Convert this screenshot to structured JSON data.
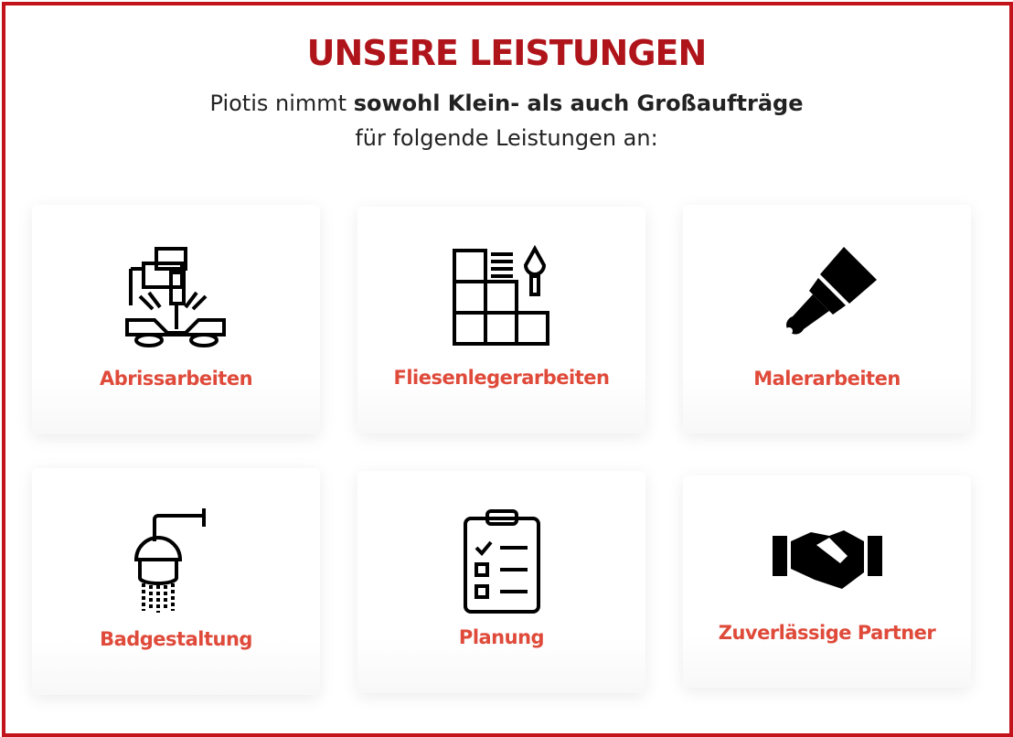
{
  "header": {
    "title": "UNSERE LEISTUNGEN",
    "subtitle_pre": "Piotis nimmt ",
    "subtitle_bold": "sowohl Klein- als auch Großaufträge",
    "subtitle_post": "für folgende Leistungen an:"
  },
  "colors": {
    "border": "#c3141c",
    "title": "#b0141b",
    "label": "#df4a3a"
  },
  "services": [
    {
      "label": "Abrissarbeiten",
      "icon": "jackhammer-icon"
    },
    {
      "label": "Fliesenlegerarbeiten",
      "icon": "tiles-trowel-icon"
    },
    {
      "label": "Malerarbeiten",
      "icon": "paintbrush-icon"
    },
    {
      "label": "Badgestaltung",
      "icon": "shower-icon"
    },
    {
      "label": "Planung",
      "icon": "clipboard-checklist-icon"
    },
    {
      "label": "Zuverlässige Partner",
      "icon": "handshake-icon"
    }
  ]
}
